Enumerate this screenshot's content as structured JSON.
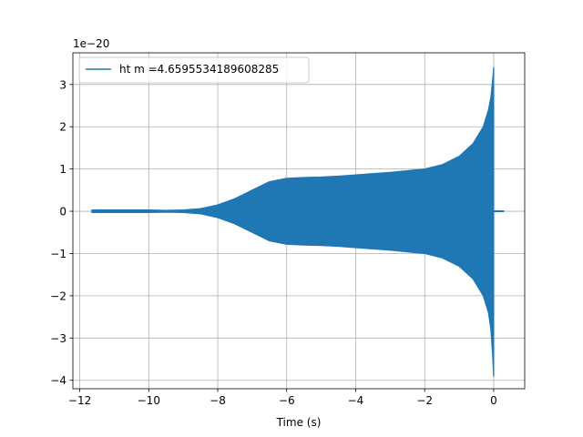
{
  "chart_data": {
    "type": "line",
    "title": "",
    "xlabel": "Time (s)",
    "ylabel": "",
    "y_offset_label": "1e−20",
    "xlim": [
      -12.2,
      0.9
    ],
    "ylim": [
      -4.2,
      3.75
    ],
    "xticks": [
      -12,
      -10,
      -8,
      -6,
      -4,
      -2,
      0
    ],
    "xtick_labels": [
      "−12",
      "−10",
      "−8",
      "−6",
      "−4",
      "−2",
      "0"
    ],
    "yticks": [
      -4,
      -3,
      -2,
      -1,
      0,
      1,
      2,
      3
    ],
    "ytick_labels": [
      "−4",
      "−3",
      "−2",
      "−1",
      "0",
      "1",
      "2",
      "3"
    ],
    "grid": true,
    "legend_placement": "top-left",
    "series": [
      {
        "name": "ht m =4.659553418960828​5",
        "color": "#1f77b4",
        "signal_start": -11.65,
        "signal_end": 0.3,
        "envelope": {
          "t": [
            -11.65,
            -10,
            -9.5,
            -9,
            -8.5,
            -8.0,
            -7.5,
            -7.0,
            -6.5,
            -6.0,
            -5.5,
            -5.0,
            -4.5,
            -4.0,
            -3.5,
            -3.0,
            -2.5,
            -2.0,
            -1.5,
            -1.0,
            -0.6,
            -0.3,
            -0.15,
            -0.08,
            -0.03,
            0.0
          ],
          "pos": [
            0.03,
            0.03,
            0.02,
            0.03,
            0.06,
            0.15,
            0.3,
            0.5,
            0.7,
            0.78,
            0.8,
            0.81,
            0.83,
            0.86,
            0.89,
            0.92,
            0.96,
            1.0,
            1.1,
            1.3,
            1.6,
            2.0,
            2.4,
            2.7,
            3.1,
            3.4
          ],
          "neg": [
            -0.03,
            -0.03,
            -0.02,
            -0.03,
            -0.06,
            -0.15,
            -0.3,
            -0.5,
            -0.7,
            -0.78,
            -0.8,
            -0.81,
            -0.83,
            -0.86,
            -0.89,
            -0.92,
            -0.96,
            -1.0,
            -1.1,
            -1.3,
            -1.6,
            -2.0,
            -2.4,
            -2.8,
            -3.4,
            -3.9
          ]
        }
      }
    ]
  }
}
